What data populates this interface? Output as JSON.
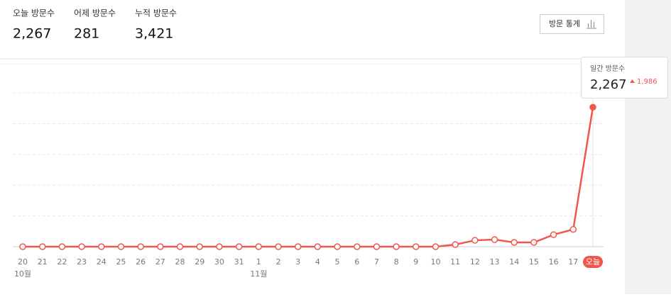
{
  "stats": [
    {
      "label": "오늘 방문수",
      "value": "2,267"
    },
    {
      "label": "어제 방문수",
      "value": "281"
    },
    {
      "label": "누적 방문수",
      "value": "3,421"
    }
  ],
  "button": "방문 통계",
  "chart_data": {
    "type": "line",
    "categories": [
      "20",
      "21",
      "22",
      "23",
      "24",
      "25",
      "26",
      "27",
      "28",
      "29",
      "30",
      "31",
      "1",
      "2",
      "3",
      "4",
      "5",
      "6",
      "7",
      "8",
      "9",
      "10",
      "11",
      "12",
      "13",
      "14",
      "15",
      "16",
      "17",
      "오늘"
    ],
    "month_labels": [
      "10월",
      null,
      null,
      null,
      null,
      null,
      null,
      null,
      null,
      null,
      null,
      null,
      "11월",
      null,
      null,
      null,
      null,
      null,
      null,
      null,
      null,
      null,
      null,
      null,
      null,
      null,
      null,
      null,
      null,
      null
    ],
    "series": [
      {
        "name": "일간 방문수",
        "color": "#f2564a",
        "values": [
          0,
          0,
          0,
          0,
          0,
          0,
          0,
          0,
          0,
          0,
          0,
          0,
          0,
          0,
          0,
          0,
          0,
          0,
          0,
          0,
          0,
          0,
          34,
          103,
          115,
          69,
          69,
          195,
          281,
          2267
        ]
      }
    ],
    "ylim": [
      0,
      2500
    ],
    "yticks": [
      0,
      500,
      1000,
      1500,
      2000,
      2500
    ],
    "grid": true,
    "tooltip": {
      "label": "일간 방문수",
      "value_label": "2,267",
      "change_label": "1,986"
    }
  }
}
